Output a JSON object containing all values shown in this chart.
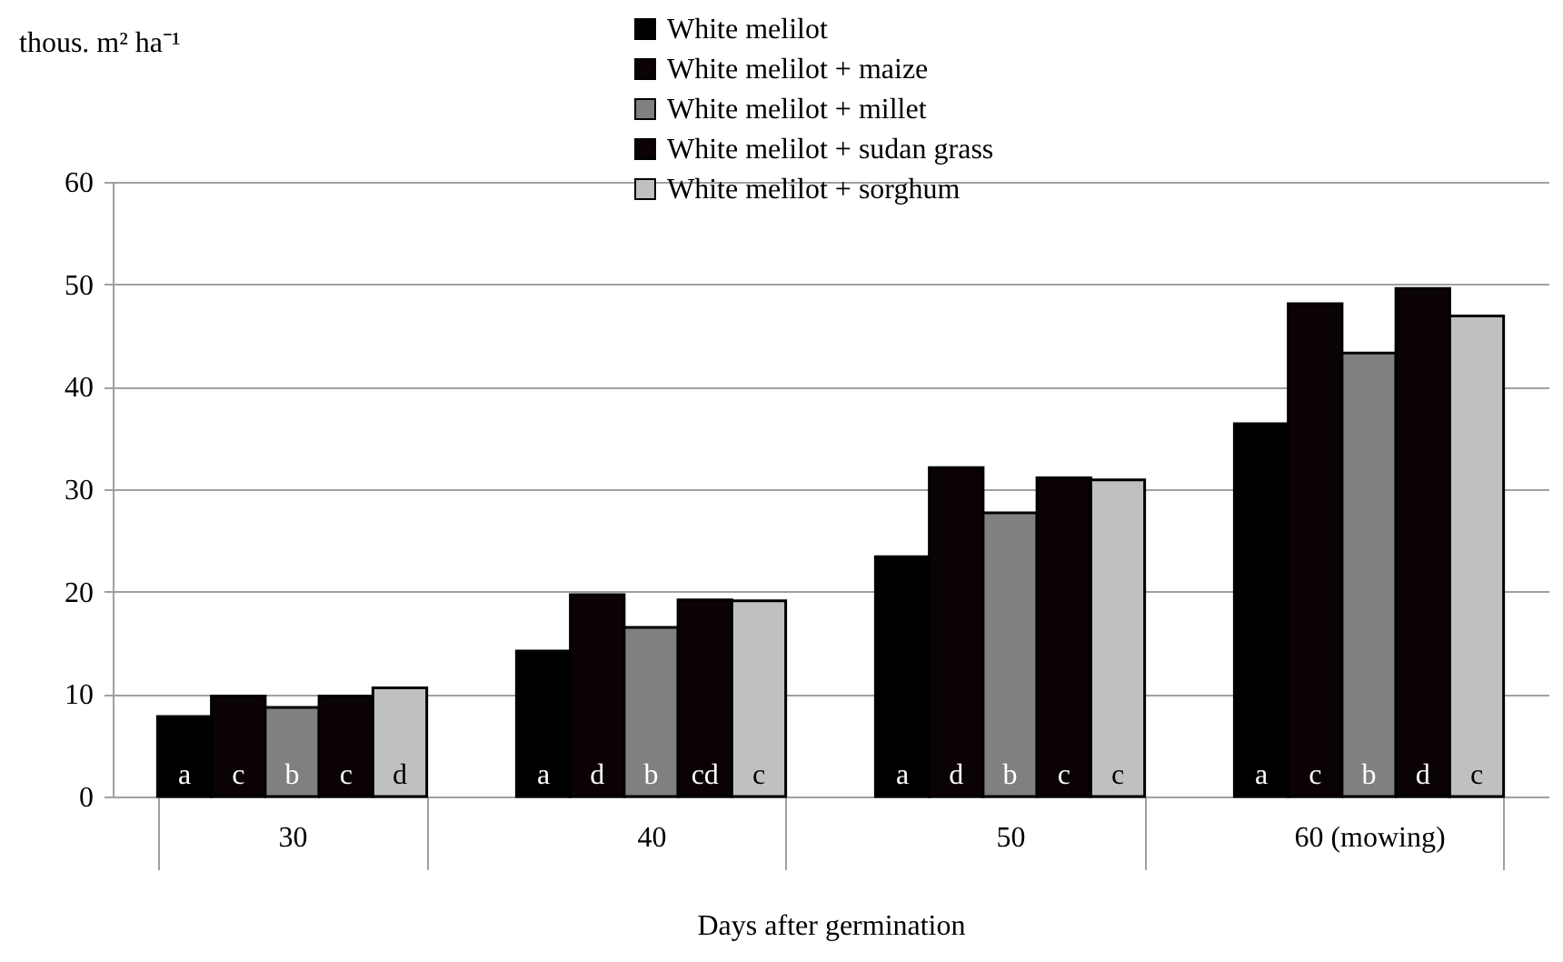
{
  "chart_data": {
    "type": "bar",
    "xlabel": "Days after germination",
    "ylabel": "thous. m² ha⁻¹",
    "categories": [
      "30",
      "40",
      "50",
      "60 (mowing)"
    ],
    "series": [
      {
        "name": "White melilot",
        "color": "#000000",
        "values": [
          7.8,
          14.2,
          23.4,
          36.4
        ],
        "value_labels": [
          "a",
          "a",
          "a",
          "a"
        ]
      },
      {
        "name": "White melilot + maize",
        "color": "#0a0203",
        "values": [
          9.8,
          19.7,
          32.1,
          48.1
        ],
        "value_labels": [
          "c",
          "d",
          "d",
          "c"
        ]
      },
      {
        "name": "White melilot + millet",
        "color": "#808080",
        "values": [
          8.7,
          16.5,
          27.7,
          43.3
        ],
        "value_labels": [
          "b",
          "b",
          "b",
          "b"
        ]
      },
      {
        "name": "White melilot + sudan grass",
        "color": "#0a0203",
        "values": [
          9.8,
          19.2,
          31.1,
          49.6
        ],
        "value_labels": [
          "c",
          "cd",
          "c",
          "d"
        ]
      },
      {
        "name": "White melilot + sorghum",
        "color": "#c0c0c0",
        "values": [
          10.6,
          19.1,
          30.9,
          46.9
        ],
        "value_labels": [
          "d",
          "c",
          "c",
          "c"
        ]
      }
    ],
    "ylim": [
      0,
      60
    ],
    "yticks": [
      0,
      10,
      20,
      30,
      40,
      50,
      60
    ],
    "grid": "y",
    "legend": "top"
  }
}
